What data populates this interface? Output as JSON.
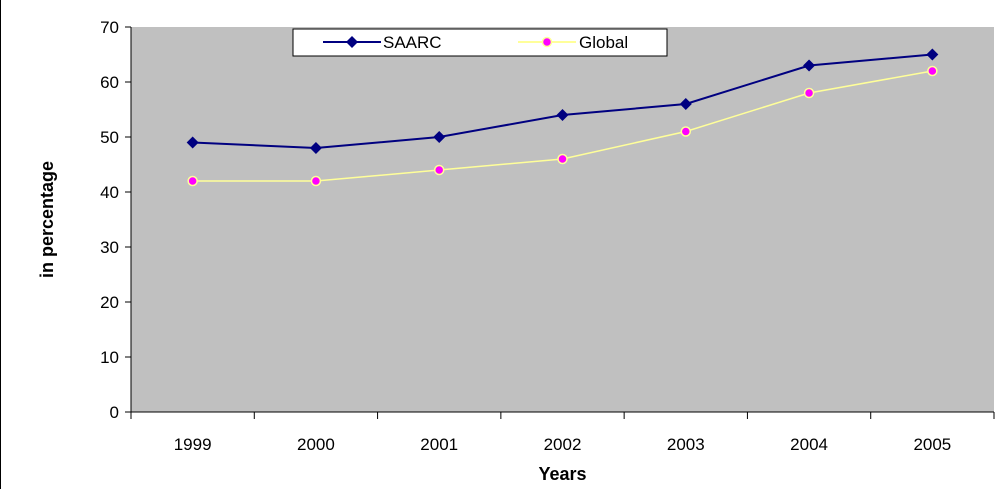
{
  "chart_data": {
    "type": "line",
    "title": "",
    "xlabel": "Years",
    "ylabel": "in percentage",
    "categories": [
      "1999",
      "2000",
      "2001",
      "2002",
      "2003",
      "2004",
      "2005"
    ],
    "ylim": [
      0,
      70
    ],
    "yticks": [
      0,
      10,
      20,
      30,
      40,
      50,
      60,
      70
    ],
    "grid": false,
    "legend_position": "top-center",
    "plot_background": "#c0c0c0",
    "series": [
      {
        "name": "SAARC",
        "values": [
          49,
          48,
          50,
          54,
          56,
          63,
          65
        ],
        "color": "#000080",
        "marker": "diamond",
        "marker_color": "#000080"
      },
      {
        "name": "Global",
        "values": [
          42,
          42,
          44,
          46,
          51,
          58,
          62
        ],
        "color": "#ffff99",
        "marker": "circle",
        "marker_color": "#ff00ff"
      }
    ]
  }
}
